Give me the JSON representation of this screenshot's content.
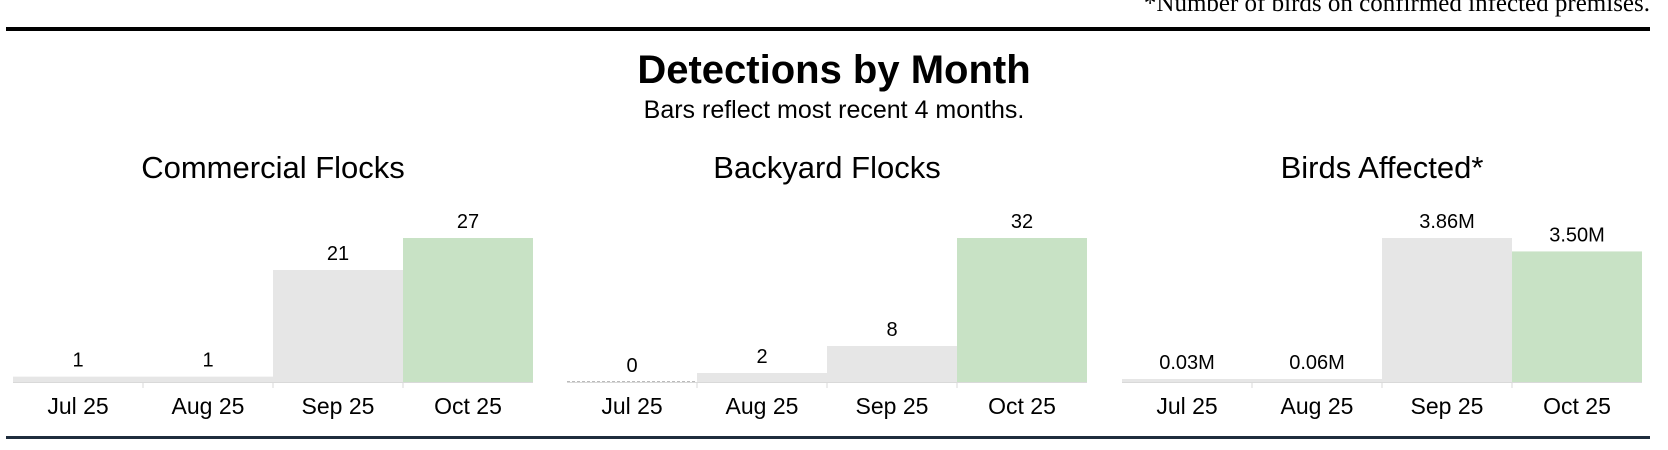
{
  "footnote": "*Number of birds on confirmed infected premises.",
  "title": "Detections by Month",
  "subtitle": "Bars reflect most recent 4 months.",
  "colors": {
    "past": "#e6e6e6",
    "current": "#c8e2c5",
    "zero_outline": "#bbbbbb"
  },
  "chart_data": [
    {
      "type": "bar",
      "title": "Commercial Flocks",
      "categories": [
        "Jul 25",
        "Aug 25",
        "Sep 25",
        "Oct 25"
      ],
      "values": [
        1,
        1,
        21,
        27
      ],
      "labels": [
        "1",
        "1",
        "21",
        "27"
      ],
      "ylim": [
        0,
        27
      ],
      "highlight_index": 3
    },
    {
      "type": "bar",
      "title": "Backyard Flocks",
      "categories": [
        "Jul 25",
        "Aug 25",
        "Sep 25",
        "Oct 25"
      ],
      "values": [
        0,
        2,
        8,
        32
      ],
      "labels": [
        "0",
        "2",
        "8",
        "32"
      ],
      "ylim": [
        0,
        32
      ],
      "highlight_index": 3
    },
    {
      "type": "bar",
      "title": "Birds Affected*",
      "categories": [
        "Jul 25",
        "Aug 25",
        "Sep 25",
        "Oct 25"
      ],
      "values": [
        0.03,
        0.06,
        3.86,
        3.5
      ],
      "labels": [
        "0.03M",
        "0.06M",
        "3.86M",
        "3.50M"
      ],
      "ylim": [
        0,
        3.86
      ],
      "highlight_index": 3
    }
  ]
}
